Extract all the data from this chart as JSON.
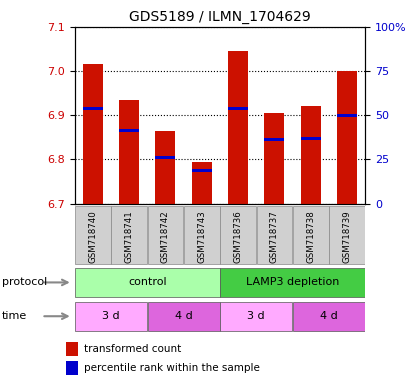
{
  "title": "GDS5189 / ILMN_1704629",
  "samples": [
    "GSM718740",
    "GSM718741",
    "GSM718742",
    "GSM718743",
    "GSM718736",
    "GSM718737",
    "GSM718738",
    "GSM718739"
  ],
  "bar_tops": [
    7.015,
    6.935,
    6.865,
    6.795,
    7.045,
    6.905,
    6.92,
    7.0
  ],
  "bar_bottoms": [
    6.7,
    6.7,
    6.7,
    6.7,
    6.7,
    6.7,
    6.7,
    6.7
  ],
  "blue_marks": [
    6.915,
    6.865,
    6.805,
    6.775,
    6.915,
    6.845,
    6.848,
    6.9
  ],
  "ylim": [
    6.7,
    7.1
  ],
  "yticks_left": [
    6.7,
    6.8,
    6.9,
    7.0,
    7.1
  ],
  "ytick_right_labels": [
    "0",
    "25",
    "50",
    "75",
    "100%"
  ],
  "bar_color": "#cc1100",
  "blue_color": "#0000cc",
  "protocol_labels": [
    "control",
    "LAMP3 depletion"
  ],
  "protocol_colors": [
    "#aaffaa",
    "#44cc44"
  ],
  "time_labels": [
    "3 d",
    "4 d",
    "3 d",
    "4 d"
  ],
  "time_colors": [
    "#ffaaff",
    "#dd66dd",
    "#ffaaff",
    "#dd66dd"
  ],
  "legend_red_label": "transformed count",
  "legend_blue_label": "percentile rank within the sample",
  "left_color": "#cc0000",
  "right_color": "#0000cc",
  "title_fontsize": 10
}
